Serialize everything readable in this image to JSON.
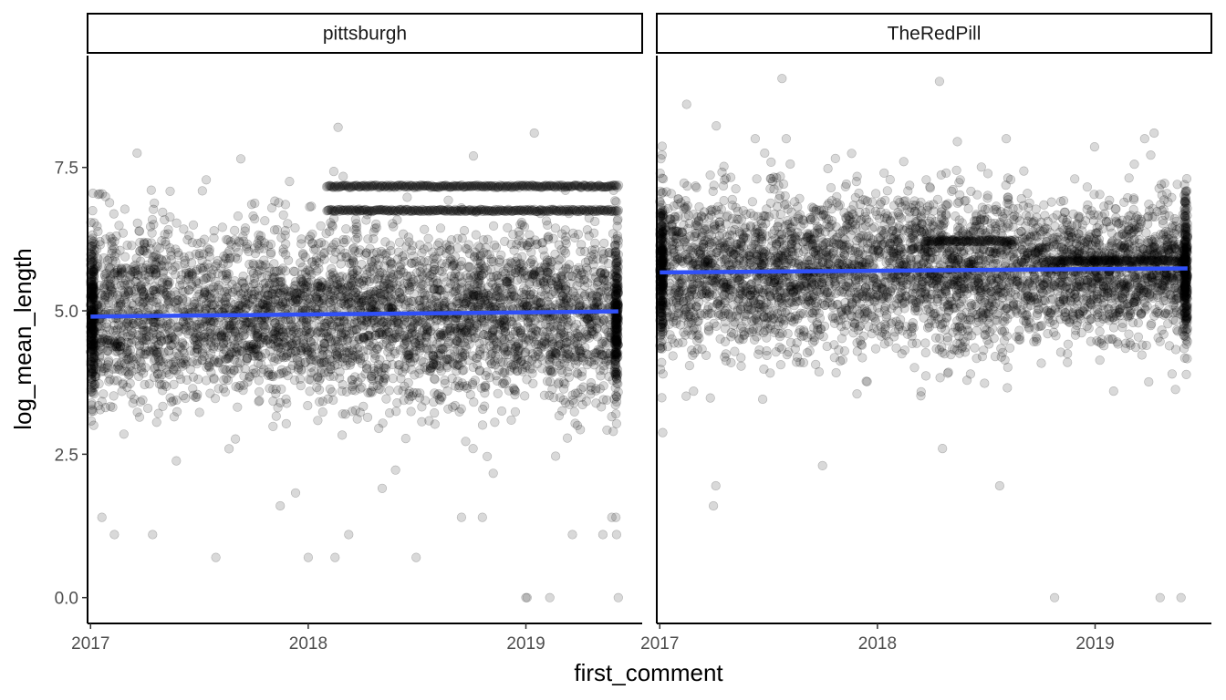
{
  "chart_data": {
    "type": "scatter",
    "facet_variable": "subreddit",
    "xlabel": "first_comment",
    "ylabel": "log_mean_length",
    "x_ticks": [
      "2017",
      "2018",
      "2019"
    ],
    "y_ticks": [
      "0.0",
      "2.5",
      "5.0",
      "7.5"
    ],
    "x_range": [
      "2016-12-27",
      "2019-07-15"
    ],
    "ylim": [
      -0.45,
      9.45
    ],
    "grid": false,
    "point_color": "#000000",
    "point_opacity": 0.15,
    "trend_color": "#3050F8",
    "panels": [
      {
        "label": "pittsburgh",
        "x_start": "2017-01-01",
        "x_end": "2019-06-05",
        "point_density": "very dense",
        "core_mean": 4.9,
        "core_sd": 0.75,
        "trend_line": {
          "x": [
            "2017-01-01",
            "2019-06-05"
          ],
          "y": [
            4.9,
            4.99
          ]
        },
        "horizontal_bands": [
          {
            "y": 7.17,
            "x_start": "2018-02-01",
            "x_end": "2019-06-05"
          },
          {
            "y": 6.75,
            "x_start": "2018-02-01",
            "x_end": "2019-06-05"
          }
        ],
        "outliers": [
          {
            "x": "2018-02-20",
            "y": 8.2
          },
          {
            "x": "2019-01-15",
            "y": 8.1
          },
          {
            "x": "2018-10-05",
            "y": 7.7
          },
          {
            "x": "2017-03-20",
            "y": 7.75
          },
          {
            "x": "2017-09-10",
            "y": 7.65
          },
          {
            "x": "2017-01-05",
            "y": 7.05
          },
          {
            "x": "2017-07-30",
            "y": 0.7
          },
          {
            "x": "2018-01-01",
            "y": 0.7
          },
          {
            "x": "2018-02-15",
            "y": 0.7
          },
          {
            "x": "2018-07-01",
            "y": 0.7
          },
          {
            "x": "2017-01-20",
            "y": 1.4
          },
          {
            "x": "2017-02-10",
            "y": 1.1
          },
          {
            "x": "2017-04-15",
            "y": 1.1
          },
          {
            "x": "2018-03-10",
            "y": 1.1
          },
          {
            "x": "2019-03-20",
            "y": 1.1
          },
          {
            "x": "2019-05-10",
            "y": 1.1
          },
          {
            "x": "2019-06-02",
            "y": 1.1
          },
          {
            "x": "2019-05-25",
            "y": 1.4
          },
          {
            "x": "2019-06-01",
            "y": 1.4
          },
          {
            "x": "2019-01-01",
            "y": 0.0
          },
          {
            "x": "2019-01-03",
            "y": 0.0
          },
          {
            "x": "2019-02-10",
            "y": 0.0
          },
          {
            "x": "2019-06-05",
            "y": 0.0
          },
          {
            "x": "2018-09-15",
            "y": 1.4
          },
          {
            "x": "2018-10-20",
            "y": 1.4
          },
          {
            "x": "2017-11-15",
            "y": 1.6
          }
        ]
      },
      {
        "label": "TheRedPill",
        "x_start": "2017-01-01",
        "x_end": "2019-06-05",
        "point_density": "very dense, sparser after 2018-09",
        "core_mean": 5.7,
        "core_sd": 0.7,
        "trend_line": {
          "x": [
            "2017-01-01",
            "2019-06-05"
          ],
          "y": [
            5.67,
            5.74
          ]
        },
        "horizontal_bands": [
          {
            "y": 6.22,
            "x_start": "2018-03-20",
            "x_end": "2018-08-20"
          },
          {
            "y": 5.87,
            "x_start": "2018-10-15",
            "x_end": "2019-06-05"
          }
        ],
        "outliers": [
          {
            "x": "2017-07-25",
            "y": 9.05
          },
          {
            "x": "2018-04-15",
            "y": 9.0
          },
          {
            "x": "2017-02-15",
            "y": 8.6
          },
          {
            "x": "2019-04-10",
            "y": 8.1
          },
          {
            "x": "2019-03-25",
            "y": 8.0
          },
          {
            "x": "2018-05-15",
            "y": 7.95
          },
          {
            "x": "2018-08-05",
            "y": 8.0
          },
          {
            "x": "2017-08-01",
            "y": 8.0
          },
          {
            "x": "2017-06-10",
            "y": 8.0
          },
          {
            "x": "2017-04-01",
            "y": 1.6
          },
          {
            "x": "2017-04-05",
            "y": 1.95
          },
          {
            "x": "2017-10-01",
            "y": 2.3
          },
          {
            "x": "2018-07-25",
            "y": 1.95
          },
          {
            "x": "2018-04-20",
            "y": 2.6
          },
          {
            "x": "2018-10-25",
            "y": 0.0
          },
          {
            "x": "2019-04-20",
            "y": 0.0
          },
          {
            "x": "2019-05-25",
            "y": 0.0
          },
          {
            "x": "2019-02-01",
            "y": 3.6
          },
          {
            "x": "2019-05-10",
            "y": 3.9
          }
        ]
      }
    ]
  }
}
